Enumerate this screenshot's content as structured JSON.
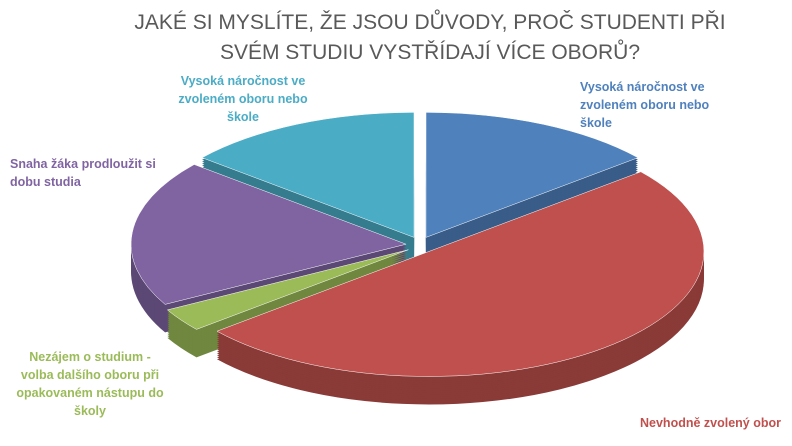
{
  "chart_data": {
    "type": "pie",
    "title": "JAKÉ SI MYSLÍTE, ŽE JSOU DŮVODY, PROČ STUDENTI PŘI SVÉM STUDIU VYSTŘÍDAJÍ VÍCE OBORŮ?",
    "categories": [
      "Vysoká náročnost ve zvoleném oboru nebo škole",
      "Nevhodně zvolený obor",
      "Nezájem o studium - volba dalšího oboru při opakovaném nástupu do školy",
      "Snaha žáka prodloužit si dobu studia",
      "Vysoká náročnost ve zvoleném oboru nebo škole"
    ],
    "values": [
      14,
      50,
      3,
      19,
      14
    ],
    "colors": [
      "#4f81bd",
      "#c0504d",
      "#9bbb59",
      "#8064a2",
      "#4bacc6"
    ]
  }
}
